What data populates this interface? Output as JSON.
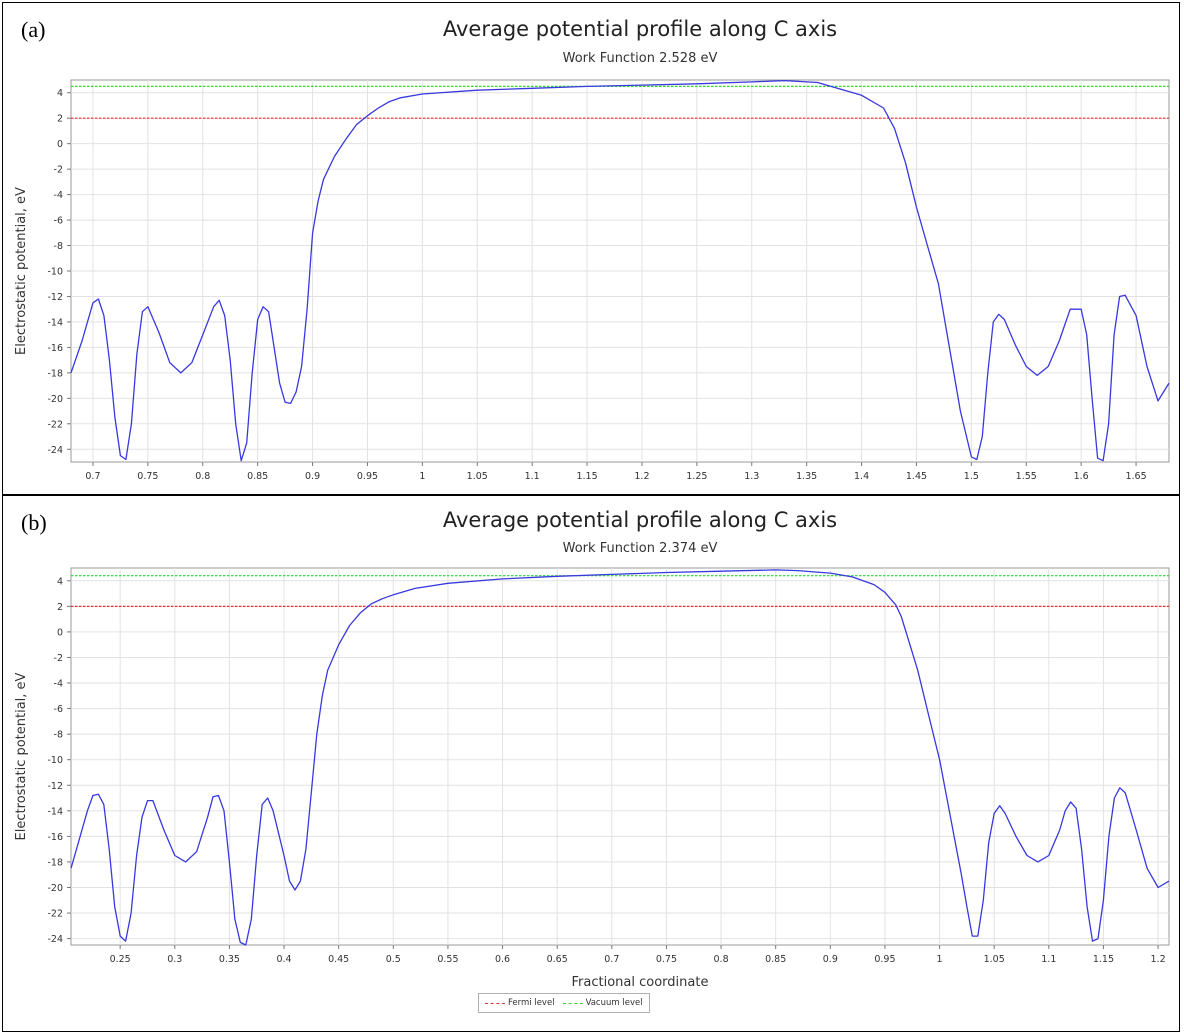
{
  "panels": [
    {
      "label": "(a)"
    },
    {
      "label": "(b)"
    }
  ],
  "legend": {
    "entries": [
      "Fermi level",
      "Vacuum level"
    ],
    "colors": [
      "#e03030",
      "#30d030"
    ]
  },
  "chart_data": [
    {
      "type": "line",
      "title": "Average potential profile along C axis",
      "subtitle": "Work Function 2.528 eV",
      "xlabel": "Fractional coordinate",
      "ylabel": "Electrostatic potential, eV",
      "xlim": [
        0.68,
        1.68
      ],
      "ylim": [
        -25,
        5
      ],
      "xticks": [
        0.7,
        0.75,
        0.8,
        0.85,
        0.9,
        0.95,
        1,
        1.05,
        1.1,
        1.15,
        1.2,
        1.25,
        1.3,
        1.35,
        1.4,
        1.45,
        1.5,
        1.55,
        1.6,
        1.65
      ],
      "yticks": [
        4,
        2,
        0,
        -2,
        -4,
        -6,
        -8,
        -10,
        -12,
        -14,
        -16,
        -18,
        -20,
        -22,
        -24
      ],
      "grid": true,
      "hlines": [
        {
          "name": "Fermi level",
          "y": 2.0,
          "color": "#e03030"
        },
        {
          "name": "Vacuum level",
          "y": 4.5,
          "color": "#30d030"
        }
      ],
      "series": [
        {
          "color": "#3838e0",
          "x": [
            0.68,
            0.69,
            0.7,
            0.705,
            0.71,
            0.715,
            0.72,
            0.725,
            0.73,
            0.735,
            0.74,
            0.745,
            0.75,
            0.76,
            0.77,
            0.78,
            0.79,
            0.8,
            0.81,
            0.815,
            0.82,
            0.825,
            0.83,
            0.835,
            0.84,
            0.845,
            0.85,
            0.855,
            0.86,
            0.865,
            0.87,
            0.875,
            0.88,
            0.885,
            0.89,
            0.895,
            0.9,
            0.905,
            0.91,
            0.92,
            0.93,
            0.94,
            0.95,
            0.96,
            0.97,
            0.98,
            1.0,
            1.05,
            1.1,
            1.15,
            1.2,
            1.25,
            1.3,
            1.33,
            1.36,
            1.38,
            1.4,
            1.42,
            1.43,
            1.44,
            1.45,
            1.46,
            1.47,
            1.48,
            1.49,
            1.5,
            1.505,
            1.51,
            1.515,
            1.52,
            1.525,
            1.53,
            1.54,
            1.55,
            1.56,
            1.57,
            1.58,
            1.59,
            1.6,
            1.605,
            1.61,
            1.615,
            1.62,
            1.625,
            1.63,
            1.635,
            1.64,
            1.65,
            1.66,
            1.67,
            1.68
          ],
          "y": [
            -18,
            -15.5,
            -12.5,
            -12.2,
            -13.5,
            -17,
            -21.5,
            -24.5,
            -24.8,
            -22,
            -16.5,
            -13.2,
            -12.8,
            -14.8,
            -17.2,
            -18,
            -17.2,
            -15,
            -12.8,
            -12.3,
            -13.5,
            -17,
            -22,
            -24.9,
            -23.5,
            -18,
            -13.8,
            -12.8,
            -13.2,
            -16,
            -18.8,
            -20.3,
            -20.4,
            -19.5,
            -17.5,
            -13,
            -7,
            -4.5,
            -2.8,
            -1,
            0.3,
            1.5,
            2.2,
            2.8,
            3.3,
            3.6,
            3.9,
            4.2,
            4.35,
            4.5,
            4.6,
            4.7,
            4.85,
            4.95,
            4.8,
            4.3,
            3.8,
            2.8,
            1.2,
            -1.5,
            -5,
            -8,
            -11,
            -16,
            -21,
            -24.6,
            -24.8,
            -23,
            -18,
            -14,
            -13.4,
            -13.8,
            -15.8,
            -17.5,
            -18.2,
            -17.5,
            -15.5,
            -13,
            -13,
            -15,
            -20,
            -24.7,
            -24.9,
            -22,
            -15,
            -12,
            -11.9,
            -13.5,
            -17.5,
            -20.2,
            -18.8
          ]
        }
      ]
    },
    {
      "type": "line",
      "title": "Average potential profile along C axis",
      "subtitle": "Work Function 2.374 eV",
      "xlabel": "Fractional coordinate",
      "ylabel": "Electrostatic potential, eV",
      "xlim": [
        0.205,
        1.21
      ],
      "ylim": [
        -24.5,
        5
      ],
      "xticks": [
        0.25,
        0.3,
        0.35,
        0.4,
        0.45,
        0.5,
        0.55,
        0.6,
        0.65,
        0.7,
        0.75,
        0.8,
        0.85,
        0.9,
        0.95,
        1,
        1.05,
        1.1,
        1.15,
        1.2
      ],
      "yticks": [
        4,
        2,
        0,
        -2,
        -4,
        -6,
        -8,
        -10,
        -12,
        -14,
        -16,
        -18,
        -20,
        -22,
        -24
      ],
      "grid": true,
      "hlines": [
        {
          "name": "Fermi level",
          "y": 2.0,
          "color": "#e03030"
        },
        {
          "name": "Vacuum level",
          "y": 4.4,
          "color": "#30d030"
        }
      ],
      "series": [
        {
          "color": "#3838e0",
          "x": [
            0.205,
            0.21,
            0.22,
            0.225,
            0.23,
            0.235,
            0.24,
            0.245,
            0.25,
            0.255,
            0.26,
            0.265,
            0.27,
            0.275,
            0.28,
            0.29,
            0.3,
            0.31,
            0.32,
            0.33,
            0.335,
            0.34,
            0.345,
            0.35,
            0.355,
            0.36,
            0.365,
            0.37,
            0.375,
            0.38,
            0.385,
            0.39,
            0.4,
            0.405,
            0.41,
            0.415,
            0.42,
            0.425,
            0.43,
            0.435,
            0.44,
            0.45,
            0.46,
            0.47,
            0.48,
            0.49,
            0.5,
            0.52,
            0.55,
            0.6,
            0.65,
            0.7,
            0.75,
            0.8,
            0.85,
            0.87,
            0.9,
            0.92,
            0.94,
            0.95,
            0.96,
            0.965,
            0.97,
            0.98,
            0.99,
            1.0,
            1.01,
            1.02,
            1.025,
            1.03,
            1.035,
            1.04,
            1.045,
            1.05,
            1.055,
            1.06,
            1.07,
            1.08,
            1.09,
            1.1,
            1.11,
            1.115,
            1.12,
            1.125,
            1.13,
            1.135,
            1.14,
            1.145,
            1.15,
            1.155,
            1.16,
            1.165,
            1.17,
            1.18,
            1.19,
            1.2,
            1.21
          ],
          "y": [
            -18.5,
            -17,
            -14,
            -12.8,
            -12.7,
            -13.5,
            -17,
            -21.5,
            -23.8,
            -24.2,
            -22,
            -17.5,
            -14.5,
            -13.2,
            -13.2,
            -15.5,
            -17.5,
            -18,
            -17.2,
            -14.5,
            -12.9,
            -12.8,
            -14,
            -18,
            -22.5,
            -24.3,
            -24.5,
            -22.5,
            -17.5,
            -13.5,
            -13,
            -14,
            -17.5,
            -19.5,
            -20.2,
            -19.5,
            -17,
            -12.5,
            -8,
            -5,
            -3,
            -1,
            0.5,
            1.5,
            2.2,
            2.6,
            2.9,
            3.4,
            3.8,
            4.15,
            4.35,
            4.5,
            4.65,
            4.75,
            4.85,
            4.8,
            4.6,
            4.3,
            3.7,
            3.1,
            2.1,
            1.2,
            -0.2,
            -3,
            -6.5,
            -10,
            -14.5,
            -19,
            -21.5,
            -23.8,
            -23.8,
            -21,
            -16.5,
            -14.2,
            -13.6,
            -14.2,
            -16,
            -17.5,
            -18,
            -17.5,
            -15.5,
            -14,
            -13.3,
            -13.8,
            -17,
            -21.5,
            -24.2,
            -24,
            -21,
            -16,
            -13,
            -12.2,
            -12.6,
            -15.5,
            -18.5,
            -20,
            -19.5
          ]
        }
      ]
    }
  ]
}
